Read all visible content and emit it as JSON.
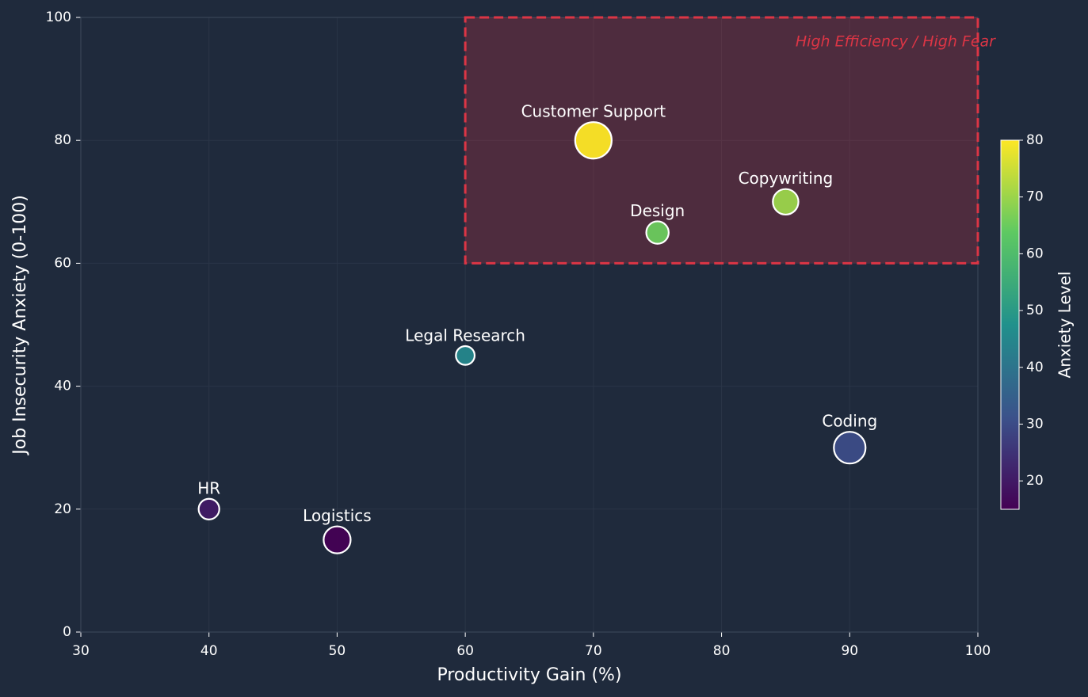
{
  "chart_data": {
    "type": "bubble",
    "xlabel": "Productivity Gain (%)",
    "ylabel": "Job Insecurity Anxiety (0-100)",
    "categories": [
      "HR",
      "Logistics",
      "Legal Research",
      "Customer Support",
      "Design",
      "Copywriting",
      "Coding"
    ],
    "x": [
      40,
      50,
      60,
      70,
      75,
      85,
      90
    ],
    "values": [
      20,
      15,
      45,
      80,
      65,
      70,
      30
    ],
    "sizes": [
      170,
      290,
      140,
      530,
      200,
      260,
      400
    ],
    "colormap": [
      "#440154",
      "#3b528b",
      "#21918c",
      "#5ec962",
      "#fde725"
    ],
    "clim": [
      15,
      80
    ],
    "colorbar_label": "Anxiety Level",
    "colorbar_ticks": [
      20,
      30,
      40,
      50,
      60,
      70,
      80
    ],
    "xlim": [
      30,
      100
    ],
    "xticks": [
      30,
      40,
      50,
      60,
      70,
      80,
      90,
      100
    ],
    "ylim": [
      0,
      100
    ],
    "yticks": [
      0,
      20,
      40,
      60,
      80,
      100
    ],
    "grid": true,
    "highlight": {
      "xlim": [
        60,
        100
      ],
      "ylim": [
        60,
        100
      ],
      "label": "High Efficiency / High Fear",
      "color": "#dc3545"
    }
  }
}
